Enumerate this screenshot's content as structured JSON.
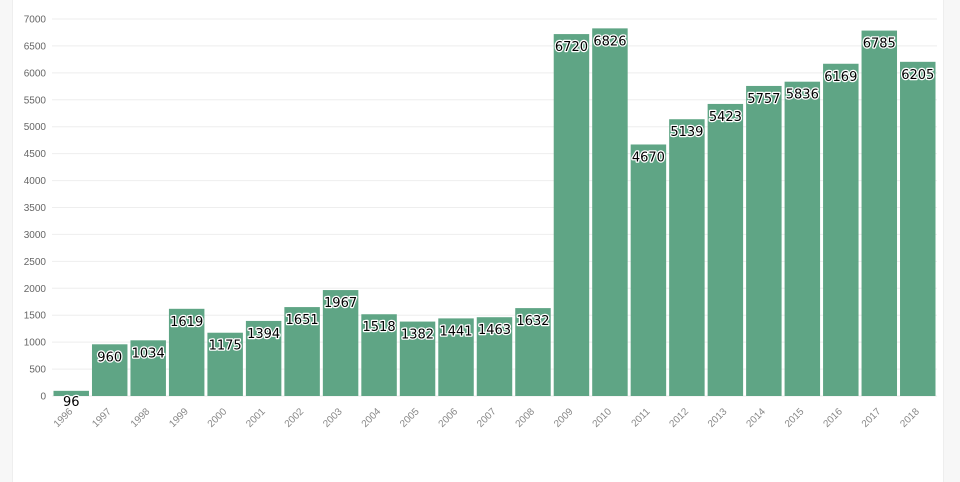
{
  "chart_data": {
    "type": "bar",
    "title": "",
    "xlabel": "",
    "ylabel": "",
    "categories": [
      "1996",
      "1997",
      "1998",
      "1999",
      "2000",
      "2001",
      "2002",
      "2003",
      "2004",
      "2005",
      "2006",
      "2007",
      "2008",
      "2009",
      "2010",
      "2011",
      "2012",
      "2013",
      "2014",
      "2015",
      "2016",
      "2017",
      "2018"
    ],
    "values": [
      96,
      960,
      1034,
      1619,
      1175,
      1394,
      1651,
      1967,
      1518,
      1382,
      1441,
      1463,
      1632,
      6720,
      6826,
      4670,
      5139,
      5423,
      5757,
      5836,
      6169,
      6785,
      6205
    ],
    "ylim": [
      0,
      7000
    ],
    "yticks": [
      0,
      500,
      1000,
      1500,
      2000,
      2500,
      3000,
      3500,
      4000,
      4500,
      5000,
      5500,
      6000,
      6500,
      7000
    ],
    "grid": true,
    "legend": "none",
    "bar_color": "#5fa585",
    "data_labels": true
  }
}
